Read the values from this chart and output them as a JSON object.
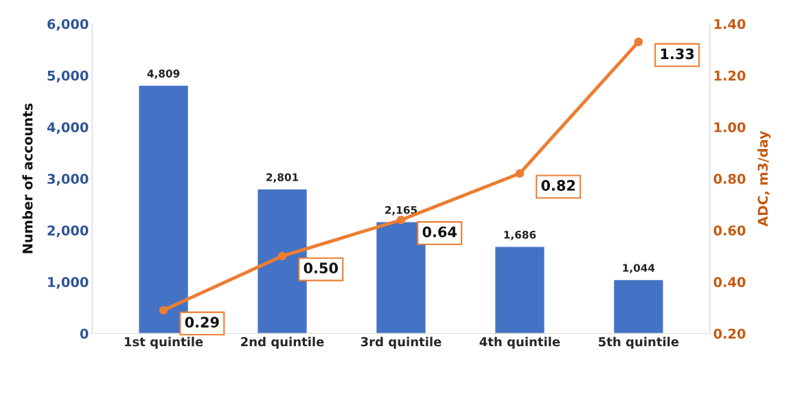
{
  "chart_data": {
    "type": "bar",
    "categories": [
      "1st quintile",
      "2nd quintile",
      "3rd quintile",
      "4th quintile",
      "5th quintile"
    ],
    "ylabel": "Number of accounts",
    "y2label": "ADC, m3/day",
    "series": [
      {
        "color": "#4472c4",
        "values": [
          4809,
          2801,
          2165,
          1686,
          1044
        ],
        "value_labels": [
          "4,809",
          "2,801",
          "2,165",
          "1,686",
          "1,044"
        ]
      },
      {
        "type": "line",
        "axis": "y2",
        "color": "#ed7d31",
        "marker": "circle",
        "values": [
          0.29,
          0.5,
          0.64,
          0.82,
          1.33
        ],
        "value_labels": [
          "0.29",
          "0.50",
          "0.64",
          "0.82",
          "1.33"
        ]
      }
    ],
    "ylim": [
      0,
      6000
    ],
    "yticks": [
      0,
      {
        "value": 1000,
        "label": "1,000"
      },
      {
        "value": 2000,
        "label": "2,000"
      },
      {
        "value": 3000,
        "label": "3,000"
      },
      {
        "value": 4000,
        "label": "4,000"
      },
      {
        "value": 5000,
        "label": "5,000"
      },
      {
        "value": 6000,
        "label": "6,000"
      }
    ],
    "y2lim": [
      0.2,
      1.4
    ],
    "y2ticks": [
      {
        "value": 0.2,
        "label": "0.20"
      },
      {
        "value": 0.4,
        "label": "0.40"
      },
      {
        "value": 0.6,
        "label": "0.60"
      },
      {
        "value": 0.8,
        "label": "0.80"
      },
      {
        "value": 1.0,
        "label": "1.00"
      },
      {
        "value": 1.2,
        "label": "1.20"
      },
      {
        "value": 1.4,
        "label": "1.40"
      }
    ],
    "grid": false,
    "legend": false
  }
}
